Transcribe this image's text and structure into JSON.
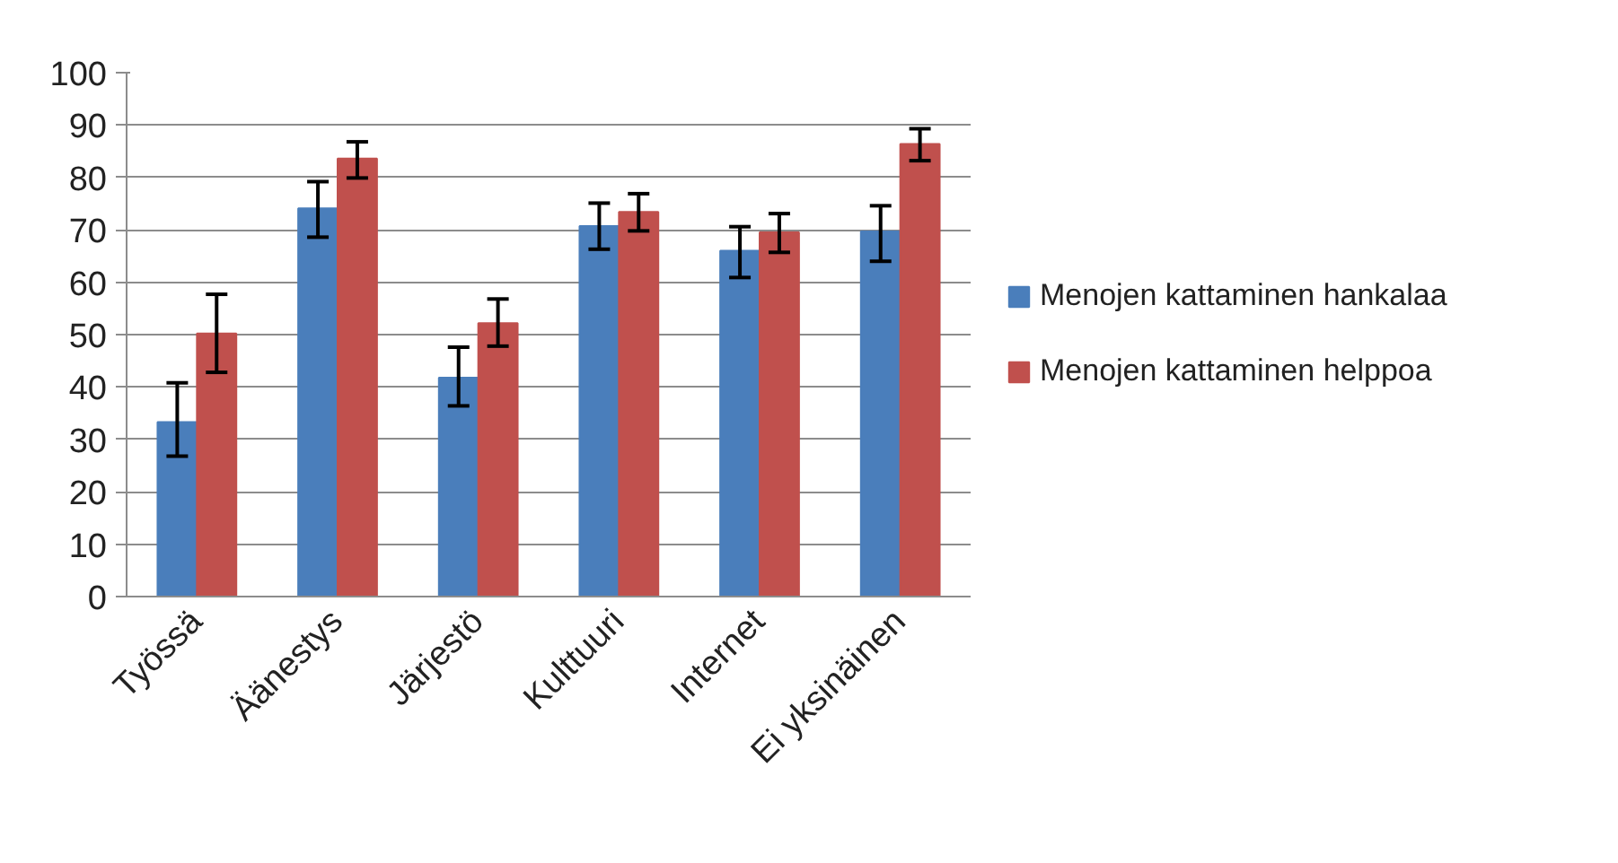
{
  "chart_data": {
    "type": "bar",
    "categories": [
      "Työssä",
      "Äänestys",
      "Järjestö",
      "Kulttuuri",
      "Internet",
      "Ei yksinäinen"
    ],
    "series": [
      {
        "name": "Menojen kattaminen hankalaa",
        "color": "#4a7ebb",
        "values": [
          33.3,
          74.1,
          41.8,
          70.7,
          66.0,
          69.7
        ],
        "errors": [
          [
            26.8,
            40.8
          ],
          [
            68.6,
            79.2
          ],
          [
            36.4,
            47.6
          ],
          [
            66.3,
            75.1
          ],
          [
            60.9,
            70.6
          ],
          [
            64.0,
            74.6
          ]
        ]
      },
      {
        "name": "Menojen kattaminen helppoa",
        "color": "#c0504d",
        "values": [
          50.2,
          83.6,
          52.2,
          73.4,
          69.5,
          86.4
        ],
        "errors": [
          [
            42.8,
            57.7
          ],
          [
            79.9,
            86.8
          ],
          [
            47.8,
            56.8
          ],
          [
            69.8,
            76.9
          ],
          [
            65.7,
            73.1
          ],
          [
            83.2,
            89.3
          ]
        ]
      }
    ],
    "ylim": [
      0,
      100
    ],
    "yticks": [
      0,
      10,
      20,
      30,
      40,
      50,
      60,
      70,
      80,
      90,
      100
    ],
    "grid": "y",
    "legend": "right"
  }
}
